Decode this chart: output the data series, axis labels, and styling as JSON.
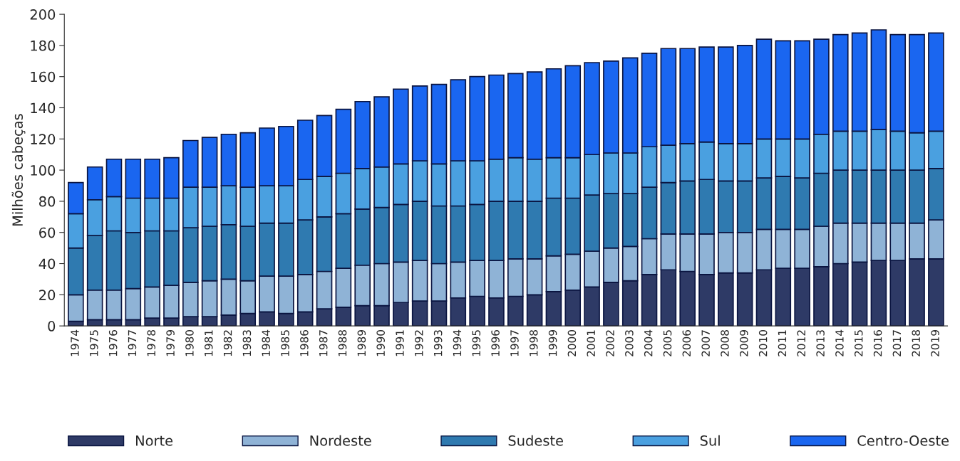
{
  "chart_data": {
    "type": "bar",
    "stacked": true,
    "ylabel": "Milhões cabeças",
    "categories": [
      "1974",
      "1975",
      "1976",
      "1977",
      "1978",
      "1979",
      "1980",
      "1981",
      "1982",
      "1983",
      "1984",
      "1985",
      "1986",
      "1987",
      "1988",
      "1989",
      "1990",
      "1991",
      "1992",
      "1993",
      "1994",
      "1995",
      "1996",
      "1997",
      "1998",
      "1999",
      "2000",
      "2001",
      "2002",
      "2003",
      "2004",
      "2005",
      "2006",
      "2007",
      "2008",
      "2009",
      "2010",
      "2011",
      "2012",
      "2013",
      "2014",
      "2015",
      "2016",
      "2017",
      "2018",
      "2019"
    ],
    "series": [
      {
        "name": "Norte",
        "color": "#2e3a66",
        "values": [
          3,
          4,
          4,
          4,
          5,
          5,
          6,
          6,
          7,
          8,
          9,
          8,
          9,
          11,
          12,
          13,
          13,
          15,
          16,
          16,
          18,
          19,
          18,
          19,
          20,
          22,
          23,
          25,
          28,
          29,
          33,
          36,
          35,
          33,
          34,
          34,
          36,
          37,
          37,
          38,
          40,
          41,
          42,
          42,
          43,
          43
        ]
      },
      {
        "name": "Nordeste",
        "color": "#8fb3d6",
        "values": [
          17,
          19,
          19,
          20,
          20,
          21,
          22,
          23,
          23,
          21,
          23,
          24,
          24,
          24,
          25,
          26,
          27,
          26,
          26,
          24,
          23,
          23,
          24,
          24,
          23,
          23,
          23,
          23,
          22,
          22,
          23,
          23,
          24,
          26,
          26,
          26,
          26,
          25,
          25,
          26,
          26,
          25,
          24,
          24,
          23,
          25
        ]
      },
      {
        "name": "Sudeste",
        "color": "#2f7ab0",
        "values": [
          30,
          35,
          38,
          36,
          36,
          35,
          35,
          35,
          35,
          35,
          34,
          34,
          35,
          35,
          35,
          36,
          36,
          37,
          38,
          37,
          36,
          36,
          38,
          37,
          37,
          37,
          36,
          36,
          35,
          34,
          33,
          33,
          34,
          35,
          33,
          33,
          33,
          34,
          33,
          34,
          34,
          34,
          34,
          34,
          34,
          33
        ]
      },
      {
        "name": "Sul",
        "color": "#4aa0e0",
        "values": [
          22,
          23,
          22,
          22,
          21,
          21,
          26,
          25,
          25,
          25,
          24,
          24,
          26,
          26,
          26,
          26,
          26,
          26,
          26,
          27,
          29,
          28,
          27,
          28,
          27,
          26,
          26,
          26,
          26,
          26,
          26,
          24,
          24,
          24,
          24,
          24,
          25,
          24,
          25,
          25,
          25,
          25,
          26,
          25,
          24,
          24
        ]
      },
      {
        "name": "Centro-Oeste",
        "color": "#1a66f0",
        "values": [
          20,
          21,
          24,
          25,
          25,
          26,
          30,
          32,
          33,
          35,
          37,
          38,
          38,
          39,
          41,
          43,
          45,
          48,
          48,
          51,
          52,
          54,
          54,
          54,
          56,
          57,
          59,
          59,
          59,
          61,
          60,
          62,
          61,
          61,
          62,
          63,
          64,
          63,
          63,
          61,
          62,
          63,
          64,
          62,
          63,
          63
        ]
      }
    ],
    "ylim": [
      0,
      200
    ],
    "yticks": [
      0,
      20,
      40,
      60,
      80,
      100,
      120,
      140,
      160,
      180,
      200
    ],
    "grid": false,
    "legend": "bottom"
  }
}
